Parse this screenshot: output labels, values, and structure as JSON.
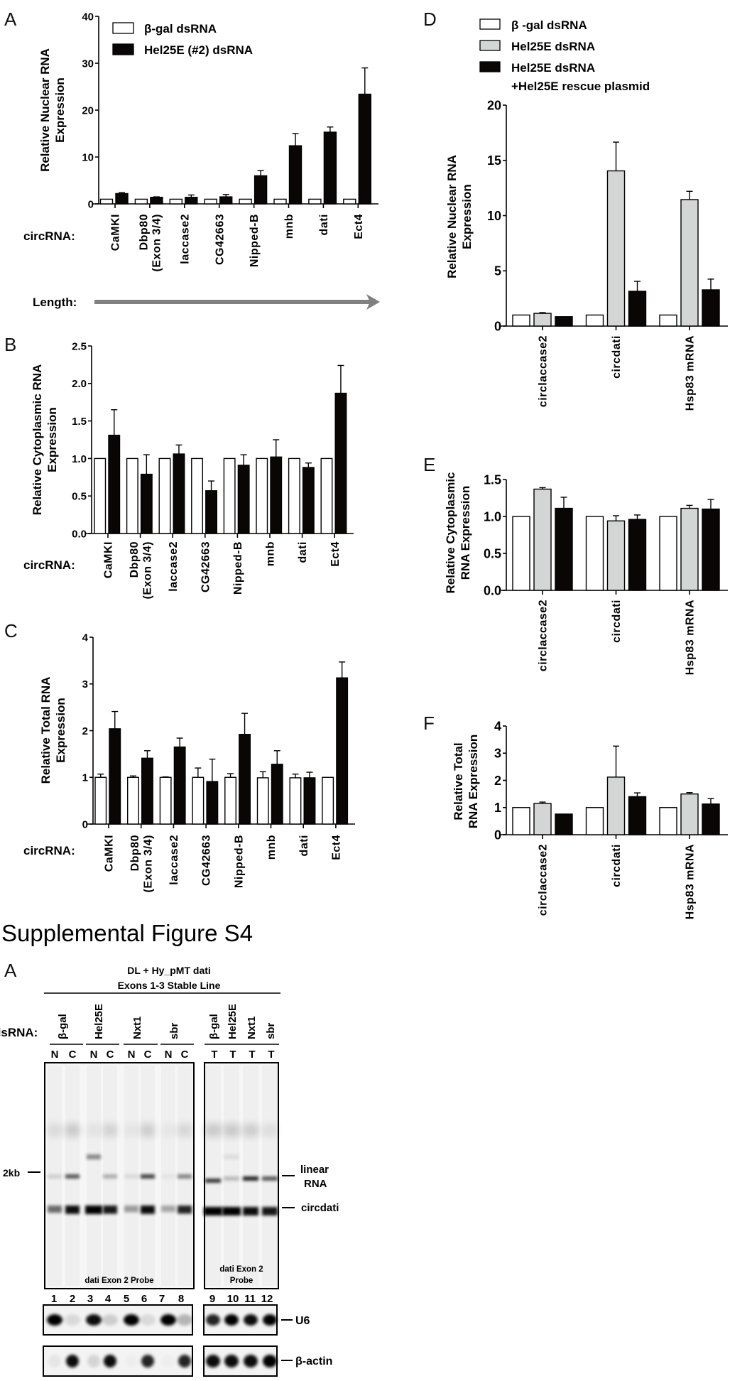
{
  "colors": {
    "white_bar": "#ffffff",
    "gray_bar": "#d4d6d6",
    "black_bar": "#0a0605",
    "arrow": "#808080",
    "ink": "#000000"
  },
  "panel_letters": {
    "A": "A",
    "B": "B",
    "C": "C",
    "D": "D",
    "E": "E",
    "F": "F"
  },
  "length_label": "Length:",
  "chart_data": [
    {
      "id": "A",
      "type": "bar",
      "title": "",
      "ylabel": [
        "Relative Nuclear RNA",
        "Expression"
      ],
      "xlabel_prefix": "circRNA:",
      "ylim": [
        0,
        40
      ],
      "yticks": [
        0,
        10,
        20,
        30,
        40
      ],
      "ytick_labels": [
        "0",
        "10",
        "20",
        "30",
        "40"
      ],
      "categories": [
        [
          "CaMKI"
        ],
        [
          "Dbp80",
          "(Exon 3/4)"
        ],
        [
          "laccase2"
        ],
        [
          "CG42663"
        ],
        [
          "Nipped-B"
        ],
        [
          "mnb"
        ],
        [
          "dati"
        ],
        [
          "Ect4"
        ]
      ],
      "legend": {
        "placement": "top-left",
        "entries": [
          "β-gal dsRNA",
          "Hel25E (#2) dsRNA"
        ]
      },
      "series": [
        {
          "name": "β-gal dsRNA",
          "fill": "white",
          "values": [
            1,
            1,
            1,
            1,
            1,
            1,
            1,
            1
          ],
          "err_upper": [
            1,
            1,
            1,
            1,
            1,
            1,
            1,
            1
          ]
        },
        {
          "name": "Hel25E (#2) dsRNA",
          "fill": "black",
          "values": [
            2.2,
            1.4,
            1.4,
            1.5,
            6.0,
            12.4,
            15.3,
            23.4
          ],
          "err_upper": [
            2.4,
            1.5,
            1.9,
            2.0,
            7.1,
            15.0,
            16.4,
            29.0
          ]
        }
      ]
    },
    {
      "id": "B",
      "type": "bar",
      "title": "",
      "ylabel": [
        "Relative Cytoplasmic RNA",
        "Expression"
      ],
      "xlabel_prefix": "circRNA:",
      "ylim": [
        0,
        2.5
      ],
      "yticks": [
        0,
        0.5,
        1.0,
        1.5,
        2.0,
        2.5
      ],
      "ytick_labels": [
        "0.0",
        "0.5",
        "1.0",
        "1.5",
        "2.0",
        "2.5"
      ],
      "categories": [
        [
          "CaMKI"
        ],
        [
          "Dbp80",
          "(Exon 3/4)"
        ],
        [
          "laccase2"
        ],
        [
          "CG42663"
        ],
        [
          "Nipped-B"
        ],
        [
          "mnb"
        ],
        [
          "dati"
        ],
        [
          "Ect4"
        ]
      ],
      "series": [
        {
          "name": "β-gal dsRNA",
          "fill": "white",
          "values": [
            1,
            1,
            1,
            1,
            1,
            1,
            1,
            1
          ],
          "err_upper": [
            1,
            1,
            1,
            1,
            1,
            1,
            1,
            1
          ]
        },
        {
          "name": "Hel25E (#2) dsRNA",
          "fill": "black",
          "values": [
            1.31,
            0.79,
            1.06,
            0.57,
            0.91,
            1.02,
            0.88,
            1.87
          ],
          "err_upper": [
            1.65,
            1.05,
            1.18,
            0.7,
            1.05,
            1.25,
            0.94,
            2.24
          ]
        }
      ]
    },
    {
      "id": "C",
      "type": "bar",
      "title": "",
      "ylabel": [
        "Relative Total RNA",
        "Expression"
      ],
      "xlabel_prefix": "circRNA:",
      "ylim": [
        0,
        4
      ],
      "yticks": [
        0,
        1,
        2,
        3,
        4
      ],
      "ytick_labels": [
        "0",
        "1",
        "2",
        "3",
        "4"
      ],
      "categories": [
        [
          "CaMKI"
        ],
        [
          "Dbp80",
          "(Exon 3/4)"
        ],
        [
          "laccase2"
        ],
        [
          "CG42663"
        ],
        [
          "Nipped-B"
        ],
        [
          "mnb"
        ],
        [
          "dati"
        ],
        [
          "Ect4"
        ]
      ],
      "series": [
        {
          "name": "β-gal dsRNA",
          "fill": "white",
          "values": [
            1.0,
            1.0,
            1.0,
            1.0,
            1.0,
            0.99,
            0.99,
            1.0
          ],
          "err_upper": [
            1.07,
            1.03,
            1.01,
            1.2,
            1.08,
            1.12,
            1.07,
            1.0
          ]
        },
        {
          "name": "Hel25E (#2) dsRNA",
          "fill": "black",
          "values": [
            2.04,
            1.41,
            1.65,
            0.91,
            1.92,
            1.28,
            0.99,
            3.13
          ],
          "err_upper": [
            2.41,
            1.57,
            1.84,
            1.39,
            2.37,
            1.57,
            1.11,
            3.47
          ]
        }
      ]
    },
    {
      "id": "D",
      "type": "bar",
      "title": "",
      "ylabel": [
        "Relative Nuclear RNA",
        "Expression"
      ],
      "ylim": [
        0,
        20
      ],
      "yticks": [
        0,
        5,
        10,
        15,
        20
      ],
      "ytick_labels": [
        "0",
        "5",
        "10",
        "15",
        "20"
      ],
      "categories": [
        [
          "circlaccase2"
        ],
        [
          "circdati"
        ],
        [
          "Hsp83 mRNA"
        ]
      ],
      "legend": {
        "placement": "top",
        "entries": [
          "β -gal dsRNA",
          "Hel25E dsRNA",
          "Hel25E dsRNA",
          "+Hel25E rescue plasmid"
        ]
      },
      "series": [
        {
          "name": "β -gal dsRNA",
          "fill": "white",
          "values": [
            1,
            1,
            1
          ],
          "err_upper": [
            1,
            1,
            1
          ]
        },
        {
          "name": "Hel25E dsRNA",
          "fill": "gray",
          "values": [
            1.15,
            14.05,
            11.45
          ],
          "err_upper": [
            1.22,
            16.65,
            12.2
          ]
        },
        {
          "name": "Hel25E dsRNA +Hel25E rescue plasmid",
          "fill": "black",
          "values": [
            0.85,
            3.15,
            3.28
          ],
          "err_upper": [
            0.85,
            4.05,
            4.25
          ]
        }
      ]
    },
    {
      "id": "E",
      "type": "bar",
      "title": "",
      "ylabel": [
        "Relative Cytoplasmic",
        "RNA Expression"
      ],
      "ylim": [
        0,
        1.5
      ],
      "yticks": [
        0,
        0.5,
        1.0,
        1.5
      ],
      "ytick_labels": [
        "0.0",
        "0.5",
        "1.0",
        "1.5"
      ],
      "categories": [
        [
          "circlaccase2"
        ],
        [
          "circdati"
        ],
        [
          "Hsp83 mRNA"
        ]
      ],
      "series": [
        {
          "name": "β -gal dsRNA",
          "fill": "white",
          "values": [
            1,
            1,
            1
          ],
          "err_upper": [
            1,
            1,
            1
          ]
        },
        {
          "name": "Hel25E dsRNA",
          "fill": "gray",
          "values": [
            1.37,
            0.94,
            1.11
          ],
          "err_upper": [
            1.39,
            1.01,
            1.15
          ]
        },
        {
          "name": "Hel25E dsRNA +Hel25E rescue plasmid",
          "fill": "black",
          "values": [
            1.11,
            0.96,
            1.1
          ],
          "err_upper": [
            1.26,
            1.02,
            1.23
          ]
        }
      ]
    },
    {
      "id": "F",
      "type": "bar",
      "title": "",
      "ylabel": [
        "Relative Total",
        "RNA Expression"
      ],
      "ylim": [
        0,
        4
      ],
      "yticks": [
        0,
        1,
        2,
        3,
        4
      ],
      "ytick_labels": [
        "0",
        "1",
        "2",
        "3",
        "4"
      ],
      "categories": [
        [
          "circlaccase2"
        ],
        [
          "circdati"
        ],
        [
          "Hsp83 mRNA"
        ]
      ],
      "series": [
        {
          "name": "β -gal dsRNA",
          "fill": "white",
          "values": [
            1,
            1,
            1
          ],
          "err_upper": [
            1,
            1,
            1
          ]
        },
        {
          "name": "Hel25E dsRNA",
          "fill": "gray",
          "values": [
            1.15,
            2.12,
            1.5
          ],
          "err_upper": [
            1.2,
            3.26,
            1.55
          ]
        },
        {
          "name": "Hel25E dsRNA +Hel25E rescue plasmid",
          "fill": "black",
          "values": [
            0.76,
            1.4,
            1.13
          ],
          "err_upper": [
            0.76,
            1.54,
            1.33
          ]
        }
      ]
    }
  ],
  "supplemental": {
    "title": "Supplemental Figure S4",
    "panel_letter": "A",
    "header_line1": "DL + Hy_pMT dati",
    "header_line2": "Exons 1-3 Stable Line",
    "dsrna_label": "dsRNA:",
    "left_groups": [
      "β-gal",
      "Hel25E",
      "Nxt1",
      "sbr"
    ],
    "left_fractions": [
      "N",
      "C",
      "N",
      "C",
      "N",
      "C",
      "N",
      "C"
    ],
    "right_groups": [
      "β-gal",
      "Hel25E",
      "Nxt1",
      "sbr"
    ],
    "right_fractions": [
      "T",
      "T",
      "T",
      "T"
    ],
    "size_marker": "2kb",
    "band_labels": {
      "linear_1": "linear",
      "linear_2": "RNA",
      "circ": "circdati"
    },
    "left_probe": "dati Exon 2 Probe",
    "right_probe_1": "dati Exon 2",
    "right_probe_2": "Probe",
    "lane_numbers": [
      "1",
      "2",
      "3",
      "4",
      "5",
      "6",
      "7",
      "8",
      "9",
      "10",
      "11",
      "12"
    ],
    "loading_labels": {
      "u6": "U6",
      "actin": "β-actin"
    },
    "band_intensity": {
      "upper_smear": [
        0.25,
        0.45,
        0.15,
        0.35,
        0.12,
        0.4,
        0.1,
        0.3,
        0.45,
        0.45,
        0.4,
        0.2
      ],
      "hel25e_extra": [
        0,
        0,
        0.6,
        0,
        0,
        0,
        0,
        0,
        0,
        0.1,
        0,
        0
      ],
      "linear": [
        0.15,
        0.7,
        0,
        0.3,
        0.1,
        0.8,
        0.05,
        0.5,
        0.85,
        0.25,
        0.95,
        0.7
      ],
      "circ": [
        0.55,
        0.95,
        1.0,
        0.9,
        0.35,
        0.95,
        0.3,
        0.85,
        1.0,
        1.0,
        0.95,
        0.9
      ],
      "u6": [
        1.0,
        0.1,
        0.95,
        0.15,
        1.0,
        0.1,
        1.0,
        0.25,
        0.85,
        1.0,
        0.95,
        1.0
      ],
      "actin": [
        0.05,
        0.95,
        0.12,
        0.95,
        0.02,
        0.85,
        0.02,
        0.85,
        0.95,
        0.95,
        0.95,
        1.0
      ]
    }
  }
}
